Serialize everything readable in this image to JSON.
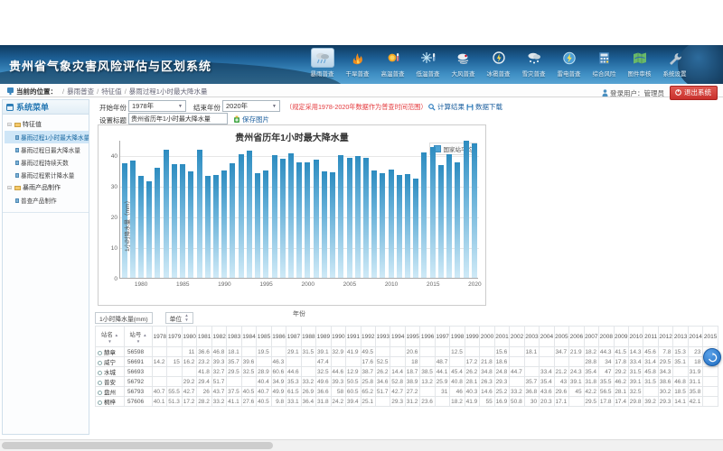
{
  "banner": {
    "title": "贵州省气象灾害风险评估与区划系统",
    "nav": [
      {
        "label": "暴雨普查",
        "icon": "rainstorm-icon",
        "selected": true
      },
      {
        "label": "干旱普查",
        "icon": "drought-icon",
        "selected": false
      },
      {
        "label": "高温普查",
        "icon": "high-temp-icon",
        "selected": false
      },
      {
        "label": "低温普查",
        "icon": "low-temp-icon",
        "selected": false
      },
      {
        "label": "大风普查",
        "icon": "wind-icon",
        "selected": false
      },
      {
        "label": "冰雹普查",
        "icon": "hail-icon",
        "selected": false
      },
      {
        "label": "雪灾普查",
        "icon": "snow-icon",
        "selected": false
      },
      {
        "label": "雷电普查",
        "icon": "lightning-icon",
        "selected": false
      },
      {
        "label": "综合风险",
        "icon": "composite-risk-icon",
        "selected": false
      },
      {
        "label": "图件审核",
        "icon": "map-review-icon",
        "selected": false
      },
      {
        "label": "系统设置",
        "icon": "settings-icon",
        "selected": false
      }
    ]
  },
  "breadcrumb": {
    "location_label": "当前的位置：",
    "path": [
      "暴雨普查",
      "特征值",
      "暴雨过程1小时最大降水量"
    ],
    "user_label": "登录用户：管理员",
    "logout_label": "退出系统"
  },
  "sidebar": {
    "title": "系统菜单",
    "groups": [
      {
        "label": "特征值",
        "children": [
          "暴雨过程1小时最大降水量",
          "暴雨过程日最大降水量",
          "暴雨过程持续天数",
          "暴雨过程累计降水量"
        ],
        "selected_index": 0
      },
      {
        "label": "暴雨产品制作",
        "children": [
          "普查产品制作"
        ],
        "selected_index": -1
      }
    ]
  },
  "filters": {
    "start_year_label": "开始年份",
    "start_year": "1978年",
    "end_year_label": "结束年份",
    "end_year": "2020年",
    "range_hint": "（规定采用1978-2020年数据作为普查时间范围）",
    "calc_label": "计算结果",
    "download_label": "数据下载",
    "title_label": "设置标题",
    "title_value": "贵州省历年1小时最大降水量",
    "save_image_label": "保存图片"
  },
  "chart_data": {
    "type": "bar",
    "title": "贵州省历年1小时最大降水量",
    "legend": [
      "国家站平均"
    ],
    "legend_position": "top-right",
    "xlabel": "年份",
    "ylabel": "1小时降水量（mm）",
    "ylim": [
      0,
      45
    ],
    "yticks": [
      0,
      10,
      20,
      30,
      40
    ],
    "xticks": [
      1980,
      1985,
      1990,
      1995,
      2000,
      2005,
      2010,
      2015,
      2020
    ],
    "grid": true,
    "bar_color": "#3b97c9",
    "x": [
      1978,
      1979,
      1980,
      1981,
      1982,
      1983,
      1984,
      1985,
      1986,
      1987,
      1988,
      1989,
      1990,
      1991,
      1992,
      1993,
      1994,
      1995,
      1996,
      1997,
      1998,
      1999,
      2000,
      2001,
      2002,
      2003,
      2004,
      2005,
      2006,
      2007,
      2008,
      2009,
      2010,
      2011,
      2012,
      2013,
      2014,
      2015,
      2016,
      2017,
      2018,
      2019,
      2020
    ],
    "values": [
      37.5,
      38.3,
      33.2,
      31.5,
      35.8,
      41.7,
      37,
      37,
      34.7,
      41.8,
      33.1,
      33.4,
      35,
      37.3,
      40.4,
      41.5,
      34.2,
      35.1,
      39.9,
      38.9,
      40.7,
      37.6,
      37.7,
      38.6,
      34.7,
      34.4,
      39.9,
      39.1,
      39.6,
      39.1,
      35,
      34.2,
      35.4,
      33.4,
      33.9,
      32.5,
      41,
      42.7,
      36.8,
      40.2,
      37.6,
      44.6,
      43.7
    ]
  },
  "table": {
    "quantity_box": "1小时降水量(mm)",
    "unit_label": "单位",
    "col_station": "站名",
    "col_station_id": "站号",
    "years": [
      1978,
      1979,
      1980,
      1981,
      1982,
      1983,
      1984,
      1985,
      1986,
      1987,
      1988,
      1989,
      1990,
      1991,
      1992,
      1993,
      1994,
      1995,
      1996,
      1997,
      1998,
      1999,
      2000,
      2001,
      2002,
      2003,
      2004,
      2005,
      2006,
      2007,
      2008,
      2009,
      2010,
      2011,
      2012,
      2013,
      2014,
      2015
    ],
    "rows": [
      {
        "name": "赫章",
        "id": "56598",
        "values": [
          "",
          "",
          "11",
          "36.6",
          "46.8",
          "18.1",
          "",
          "19.5",
          "",
          "29.1",
          "31.5",
          "39.1",
          "32.9",
          "41.9",
          "49.5",
          "",
          "",
          "20.6",
          "",
          "",
          "12.5",
          "",
          "",
          "15.6",
          "",
          "18.1",
          "",
          "34.7",
          "21.9",
          "18.2",
          "44.3",
          "41.5",
          "14.3",
          "45.6",
          "7.8",
          "15.3",
          "23",
          ""
        ]
      },
      {
        "name": "威宁",
        "id": "56691",
        "values": [
          "14.2",
          "15",
          "16.2",
          "23.2",
          "39.3",
          "35.7",
          "39.6",
          "",
          "46.3",
          "",
          "",
          "47.4",
          "",
          "",
          "17.6",
          "52.5",
          "",
          "18",
          "",
          "48.7",
          "",
          "17.2",
          "21.8",
          "18.6",
          "",
          "",
          "",
          "",
          "",
          "28.8",
          "34",
          "17.8",
          "33.4",
          "31.4",
          "29.5",
          "35.1",
          "18",
          ""
        ]
      },
      {
        "name": "水城",
        "id": "56693",
        "values": [
          "",
          "",
          "",
          "41.8",
          "32.7",
          "29.5",
          "32.5",
          "28.9",
          "60.6",
          "44.6",
          "",
          "32.5",
          "44.6",
          "12.9",
          "38.7",
          "26.2",
          "14.4",
          "18.7",
          "38.5",
          "44.1",
          "45.4",
          "26.2",
          "34.8",
          "24.8",
          "44.7",
          "",
          "33.4",
          "21.2",
          "24.3",
          "35.4",
          "47",
          "29.2",
          "31.5",
          "45.8",
          "34.3",
          "",
          "31.9",
          ""
        ]
      },
      {
        "name": "普安",
        "id": "56792",
        "values": [
          "",
          "",
          "29.2",
          "29.4",
          "51.7",
          "",
          "",
          "40.4",
          "34.9",
          "35.3",
          "33.2",
          "49.6",
          "39.3",
          "50.5",
          "25.8",
          "34.6",
          "52.8",
          "38.9",
          "13.2",
          "25.9",
          "40.8",
          "28.1",
          "26.3",
          "29.3",
          "",
          "35.7",
          "35.4",
          "43",
          "39.1",
          "31.8",
          "35.5",
          "46.2",
          "39.1",
          "31.5",
          "38.6",
          "46.8",
          "31.1",
          ""
        ]
      },
      {
        "name": "盘州",
        "id": "56793",
        "values": [
          "40.7",
          "55.5",
          "42.7",
          "26",
          "43.7",
          "37.5",
          "40.5",
          "40.7",
          "49.9",
          "61.5",
          "26.9",
          "36.6",
          "58",
          "60.5",
          "65.2",
          "51.7",
          "42.7",
          "27.2",
          "",
          "31",
          "46",
          "40.3",
          "14.6",
          "25.2",
          "33.2",
          "36.8",
          "43.6",
          "29.6",
          "45",
          "42.2",
          "56.5",
          "28.1",
          "32.5",
          "",
          "30.2",
          "18.5",
          "35.8",
          ""
        ]
      },
      {
        "name": "桐梓",
        "id": "57606",
        "values": [
          "40.1",
          "51.3",
          "17.2",
          "28.2",
          "33.2",
          "41.1",
          "27.6",
          "40.5",
          "9.8",
          "33.1",
          "36.4",
          "31.8",
          "24.2",
          "39.4",
          "25.1",
          "",
          "29.3",
          "31.2",
          "23.6",
          "",
          "18.2",
          "41.9",
          "55",
          "16.9",
          "50.8",
          "30",
          "20.3",
          "17.1",
          "",
          "29.5",
          "17.8",
          "17.4",
          "29.8",
          "39.2",
          "29.3",
          "14.1",
          "42.1",
          ""
        ]
      }
    ]
  },
  "colors": {
    "banner_blue": "#1d6096",
    "accent_blue": "#1c5f9e",
    "alert_red": "#e4393c",
    "logout_red": "#c9302c",
    "bar_top": "#2d8cc0",
    "bar_bottom": "#cfeaf7",
    "selected_item_bg": "#cfe6f7"
  }
}
